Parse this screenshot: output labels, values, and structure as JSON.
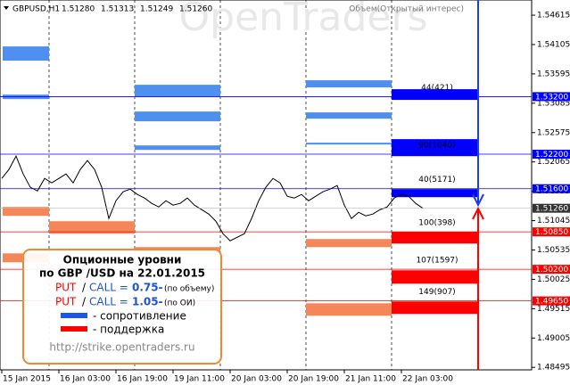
{
  "header": {
    "symbol": "GBPUSD,H1",
    "ohlc": [
      "1.51280",
      "1.51313",
      "1.51249",
      "1.51260"
    ],
    "indicator": "Объем(Открытый интерес)",
    "watermark": "OpenTraders"
  },
  "chart_data": {
    "type": "line",
    "color": "#000000",
    "values": [
      1.51778,
      1.51934,
      1.52166,
      1.51856,
      1.51624,
      1.51562,
      1.51778,
      1.51701,
      1.51778,
      1.51856,
      1.51701,
      1.51934,
      1.52089,
      1.51934,
      1.51624,
      1.51081,
      1.51391,
      1.51546,
      1.51593,
      1.515,
      1.51438,
      1.51345,
      1.51283,
      1.51391,
      1.51314,
      1.51345,
      1.51438,
      1.51314,
      1.51236,
      1.51159,
      1.51035,
      1.50818,
      1.50694,
      1.50756,
      1.50818,
      1.51081,
      1.51391,
      1.51624,
      1.51778,
      1.51701,
      1.51469,
      1.51438,
      1.515,
      1.51391,
      1.51469,
      1.51546,
      1.51593,
      1.51655,
      1.51314,
      1.51081,
      1.5119,
      1.51128,
      1.51159,
      1.51236,
      1.51283,
      1.51438,
      1.515,
      1.51469,
      1.51345,
      1.5126
    ],
    "ylim": [
      1.48452,
      1.54879
    ],
    "yticks": [
      1.54615,
      1.54105,
      1.53595,
      1.53085,
      1.52575,
      1.52065,
      1.51555,
      1.51045,
      1.50535,
      1.50025,
      1.49515,
      1.49005,
      1.48495
    ],
    "time_labels": [
      "15 Jan 2015",
      "16 Jan 03:00",
      "16 Jan 19:00",
      "19 Jan 11:00",
      "20 Jan 03:00",
      "20 Jan 19:00",
      "21 Jan 11:00",
      "22 Jan 03:00"
    ],
    "current_price": {
      "value": 1.5126,
      "label": "1.51260"
    },
    "levels": [
      {
        "value": 1.532,
        "label": "1.53200",
        "text": "44(421)",
        "color": "#0000ff"
      },
      {
        "value": 1.522,
        "label": "1.52200",
        "text": "90(1040)",
        "color": "#0000ff"
      },
      {
        "value": 1.516,
        "label": "1.51600",
        "text": "40(5171)",
        "color": "#0000ff"
      },
      {
        "value": 1.5085,
        "label": "1.50850",
        "text": "100(398)",
        "color": "#ff0000"
      },
      {
        "value": 1.502,
        "label": "1.50200",
        "text": "107(1597)",
        "color": "#ff0000"
      },
      {
        "value": 1.4965,
        "label": "1.49650",
        "text": "149(907)",
        "color": "#ff0000"
      }
    ],
    "option_levels": [
      [
        {
          "low": 1.53825,
          "high": 1.54072,
          "color": "#4f8ff0"
        },
        {
          "low": 1.53158,
          "high": 1.53235,
          "color": "#4f8ff0"
        },
        {
          "low": 1.51128,
          "high": 1.51283,
          "color": "#f4875a"
        },
        {
          "low": 1.50321,
          "high": 1.50476,
          "color": "#f4875a"
        }
      ],
      [
        {
          "low": 1.50818,
          "high": 1.51035,
          "color": "#f4875a"
        }
      ],
      [
        {
          "low": 1.53205,
          "high": 1.53406,
          "color": "#4f8ff0"
        },
        {
          "low": 1.52771,
          "high": 1.52941,
          "color": "#4f8ff0"
        },
        {
          "low": 1.52274,
          "high": 1.52352,
          "color": "#4f8ff0"
        },
        {
          "low": 1.50507,
          "high": 1.50585,
          "color": "#f4875a"
        }
      ],
      [],
      [
        {
          "low": 1.5336,
          "high": 1.53484,
          "color": "#4f8ff0"
        },
        {
          "low": 1.52817,
          "high": 1.52926,
          "color": "#4f8ff0"
        },
        {
          "low": 1.52368,
          "high": 1.52399,
          "color": "#4f8ff0"
        },
        {
          "low": 1.50585,
          "high": 1.50725,
          "color": "#f4875a"
        },
        {
          "low": 1.49392,
          "high": 1.49609,
          "color": "#f4875a"
        }
      ],
      [
        {
          "low": 1.53143,
          "high": 1.53329,
          "color": "#0000ff"
        },
        {
          "low": 1.52166,
          "high": 1.52461,
          "color": "#0000ff"
        },
        {
          "low": 1.51453,
          "high": 1.51593,
          "color": "#0000ff"
        },
        {
          "low": 1.50647,
          "high": 1.50849,
          "color": "#ff0000"
        },
        {
          "low": 1.49949,
          "high": 1.50182,
          "color": "#ff0000"
        },
        {
          "low": 1.49423,
          "high": 1.4964,
          "color": "#ff0000"
        }
      ]
    ]
  },
  "info_box": {
    "title": "Опционные уровни",
    "subtitle": "по GBP /USD на 22.01.2015",
    "put": "PUT",
    "slash": "/",
    "call": "CALL =",
    "ratio_volume": "0.75-",
    "note_volume": "(по объему)",
    "ratio_oi": "1.05-",
    "note_oi": "(по ОИ)",
    "resistance": "- сопротивление",
    "support": "- поддержка",
    "url": "http://strike.opentraders.ru"
  }
}
